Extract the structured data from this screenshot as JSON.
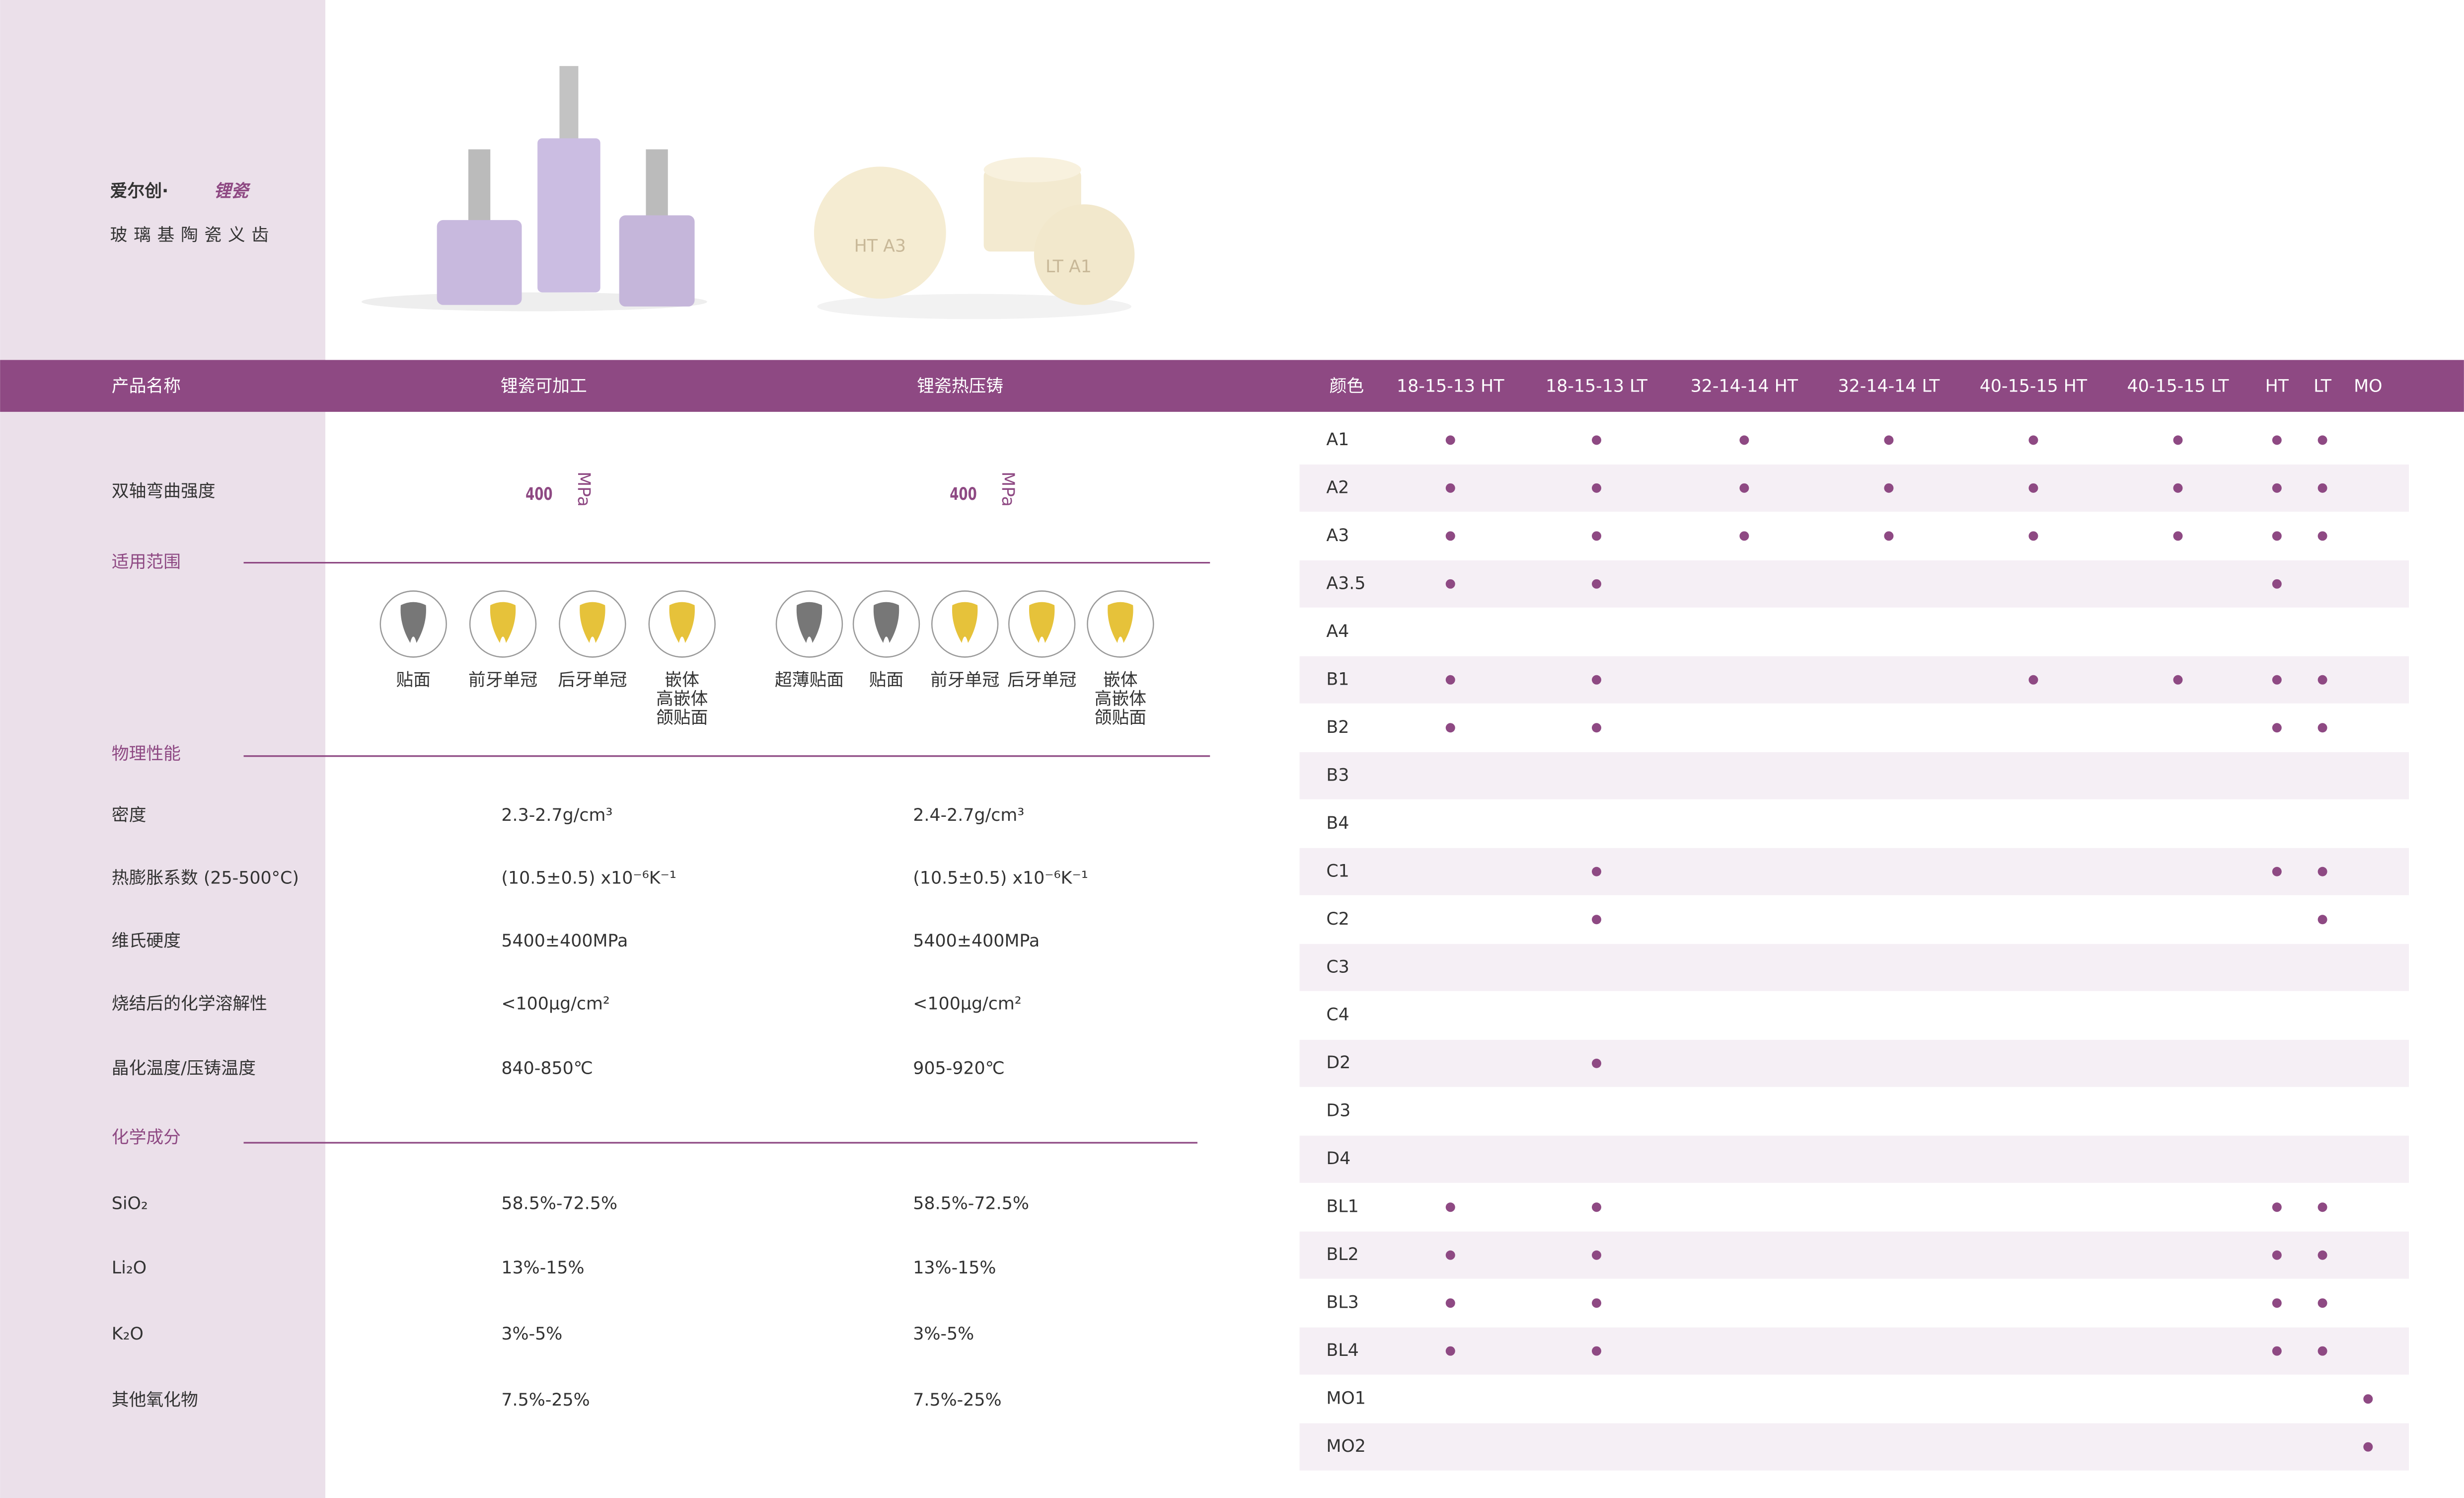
{
  "brand": {
    "name": "爱尔创·",
    "product": "锂瓷",
    "subtitle": "玻璃基陶瓷义齿"
  },
  "images": {
    "disc_labels": [
      "HT A3",
      "LT A1"
    ]
  },
  "spec_table": {
    "header": [
      "产品名称",
      "锂瓷可加工",
      "锂瓷热压铸"
    ],
    "strength": {
      "label": "双轴弯曲强度",
      "values": [
        "400",
        "400"
      ],
      "unit": "MPa"
    },
    "sections": {
      "scope": "适用范围",
      "physical": "物理性能",
      "chemical": "化学成分"
    },
    "scope": [
      [
        "贴面",
        "前牙单冠",
        "后牙单冠",
        [
          "嵌体",
          "高嵌体",
          "颌贴面"
        ]
      ],
      [
        "超薄贴面",
        "贴面",
        "前牙单冠",
        "后牙单冠",
        [
          "嵌体",
          "高嵌体",
          "颌贴面"
        ]
      ]
    ],
    "physical": [
      [
        "密度",
        "2.3-2.7g/cm³",
        "2.4-2.7g/cm³"
      ],
      [
        "热膨胀系数 (25-500°C)",
        "(10.5±0.5) x10⁻⁶K⁻¹",
        "(10.5±0.5) x10⁻⁶K⁻¹"
      ],
      [
        "维氏硬度",
        "5400±400MPa",
        "5400±400MPa"
      ],
      [
        "烧结后的化学溶解性",
        "<100μg/cm²",
        "<100μg/cm²"
      ],
      [
        "晶化温度/压铸温度",
        "840-850℃",
        "905-920℃"
      ]
    ],
    "chemical": [
      [
        "SiO₂",
        "58.5%-72.5%",
        "58.5%-72.5%"
      ],
      [
        "Li₂O",
        "13%-15%",
        "13%-15%"
      ],
      [
        "K₂O",
        "3%-5%",
        "3%-5%"
      ],
      [
        "其他氧化物",
        "7.5%-25%",
        "7.5%-25%"
      ]
    ]
  },
  "shade_table": {
    "columns": [
      "颜色",
      "18-15-13 HT",
      "18-15-13 LT",
      "32-14-14 HT",
      "32-14-14 LT",
      "40-15-15 HT",
      "40-15-15 LT",
      "HT",
      "LT",
      "MO"
    ],
    "rows": [
      {
        "shade": "A1",
        "available": [
          true,
          true,
          true,
          true,
          true,
          true,
          true,
          true,
          false
        ]
      },
      {
        "shade": "A2",
        "available": [
          true,
          true,
          true,
          true,
          true,
          true,
          true,
          true,
          false
        ]
      },
      {
        "shade": "A3",
        "available": [
          true,
          true,
          true,
          true,
          true,
          true,
          true,
          true,
          false
        ]
      },
      {
        "shade": "A3.5",
        "available": [
          true,
          true,
          false,
          false,
          false,
          false,
          true,
          false,
          false
        ]
      },
      {
        "shade": "A4",
        "available": [
          false,
          false,
          false,
          false,
          false,
          false,
          false,
          false,
          false
        ]
      },
      {
        "shade": "B1",
        "available": [
          true,
          true,
          false,
          false,
          true,
          true,
          true,
          true,
          false
        ]
      },
      {
        "shade": "B2",
        "available": [
          true,
          true,
          false,
          false,
          false,
          false,
          true,
          true,
          false
        ]
      },
      {
        "shade": "B3",
        "available": [
          false,
          false,
          false,
          false,
          false,
          false,
          false,
          false,
          false
        ]
      },
      {
        "shade": "B4",
        "available": [
          false,
          false,
          false,
          false,
          false,
          false,
          false,
          false,
          false
        ]
      },
      {
        "shade": "C1",
        "available": [
          false,
          true,
          false,
          false,
          false,
          false,
          true,
          true,
          false
        ]
      },
      {
        "shade": "C2",
        "available": [
          false,
          true,
          false,
          false,
          false,
          false,
          false,
          true,
          false
        ]
      },
      {
        "shade": "C3",
        "available": [
          false,
          false,
          false,
          false,
          false,
          false,
          false,
          false,
          false
        ]
      },
      {
        "shade": "C4",
        "available": [
          false,
          false,
          false,
          false,
          false,
          false,
          false,
          false,
          false
        ]
      },
      {
        "shade": "D2",
        "available": [
          false,
          true,
          false,
          false,
          false,
          false,
          false,
          false,
          false
        ]
      },
      {
        "shade": "D3",
        "available": [
          false,
          false,
          false,
          false,
          false,
          false,
          false,
          false,
          false
        ]
      },
      {
        "shade": "D4",
        "available": [
          false,
          false,
          false,
          false,
          false,
          false,
          false,
          false,
          false
        ]
      },
      {
        "shade": "BL1",
        "available": [
          true,
          true,
          false,
          false,
          false,
          false,
          true,
          true,
          false
        ]
      },
      {
        "shade": "BL2",
        "available": [
          true,
          true,
          false,
          false,
          false,
          false,
          true,
          true,
          false
        ]
      },
      {
        "shade": "BL3",
        "available": [
          true,
          true,
          false,
          false,
          false,
          false,
          true,
          true,
          false
        ]
      },
      {
        "shade": "BL4",
        "available": [
          true,
          true,
          false,
          false,
          false,
          false,
          true,
          true,
          false
        ]
      },
      {
        "shade": "MO1",
        "available": [
          false,
          false,
          false,
          false,
          false,
          false,
          false,
          false,
          true
        ]
      },
      {
        "shade": "MO2",
        "available": [
          false,
          false,
          false,
          false,
          false,
          false,
          false,
          false,
          true
        ]
      }
    ]
  }
}
